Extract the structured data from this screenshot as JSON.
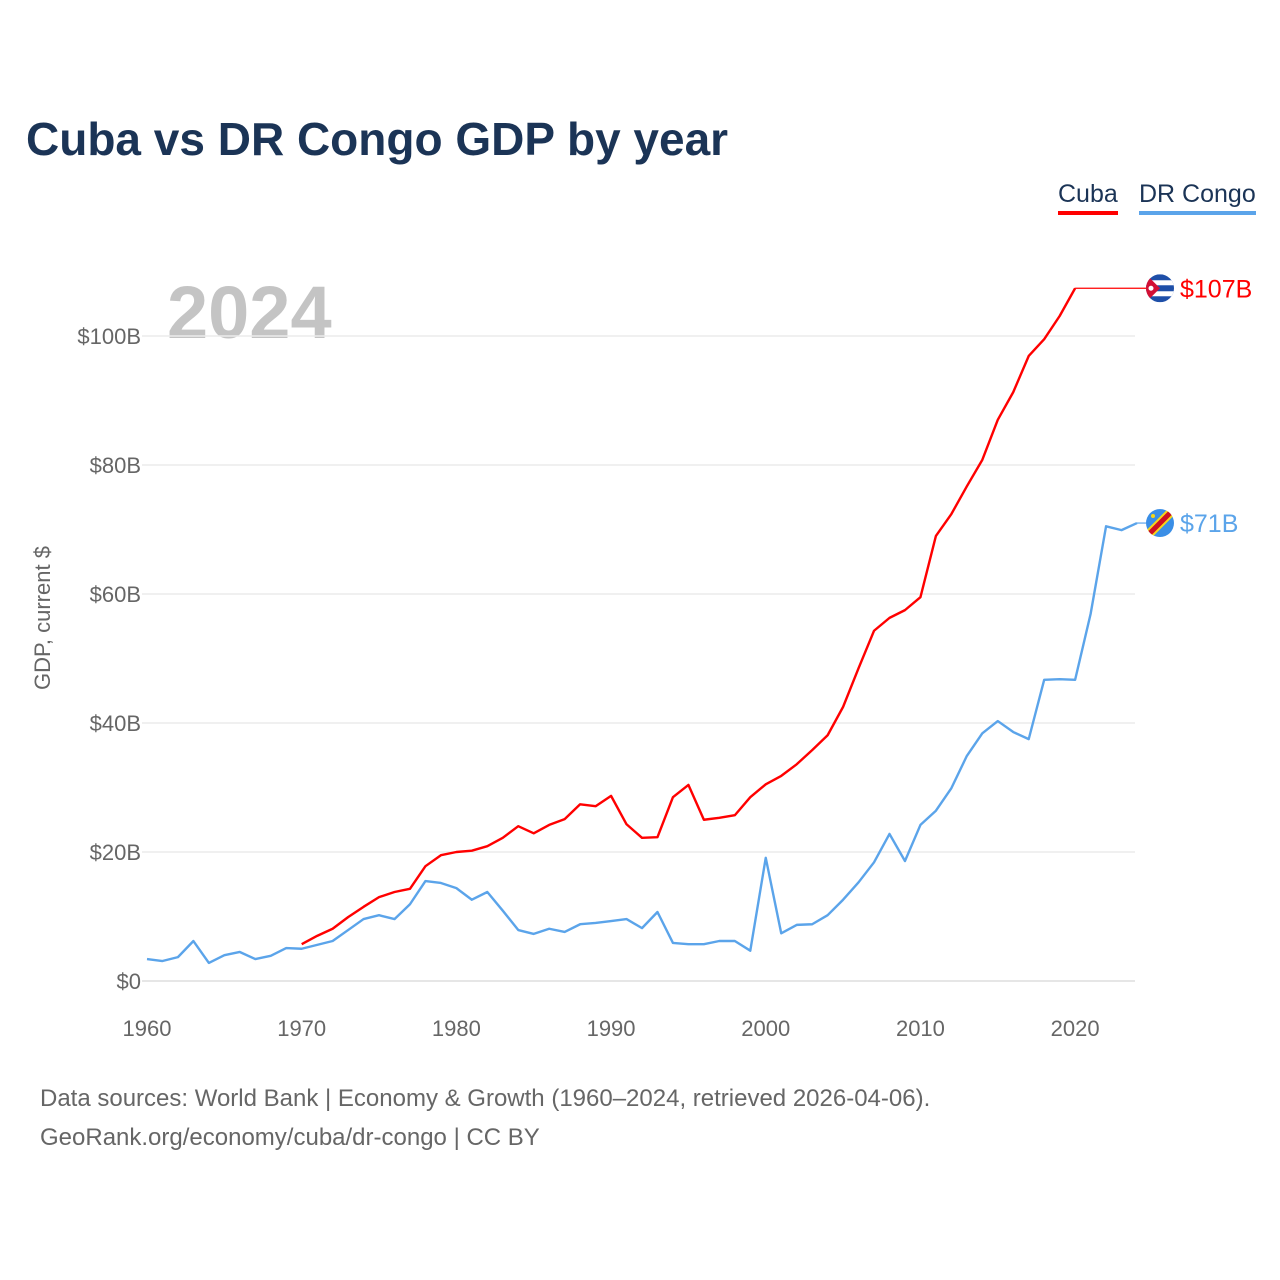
{
  "title": "Cuba vs DR Congo GDP by year",
  "legend": [
    {
      "label": "Cuba",
      "color": "#ff0000"
    },
    {
      "label": "DR Congo",
      "color": "#5ba4ea"
    }
  ],
  "footer": {
    "line1": "Data sources: World Bank | Economy & Growth (1960–2024, retrieved 2026-04-06).",
    "line2": "GeoRank.org/economy/cuba/dr-congo | CC BY"
  },
  "chart_data": {
    "type": "line",
    "title": "Cuba vs DR Congo GDP by year",
    "year_watermark": "2024",
    "ylabel": "GDP, current $",
    "xlabel": "",
    "xlim": [
      1960,
      2024
    ],
    "ylim": [
      0,
      110
    ],
    "x_ticks": [
      1960,
      1970,
      1980,
      1990,
      2000,
      2010,
      2020
    ],
    "x_tick_labels": [
      "1960",
      "1970",
      "1980",
      "1990",
      "2000",
      "2010",
      "2020"
    ],
    "y_ticks": [
      0,
      20,
      40,
      60,
      80,
      100
    ],
    "y_tick_labels": [
      "$0",
      "$20B",
      "$40B",
      "$60B",
      "$80B",
      "$100B"
    ],
    "grid": true,
    "legend_position": "top-right",
    "series": [
      {
        "name": "Cuba",
        "color": "#ff0000",
        "end_label": "$107B",
        "flag": "cuba-flag",
        "start_year": 1970,
        "values": [
          5.7,
          7.0,
          8.1,
          9.9,
          11.5,
          13.0,
          13.8,
          14.3,
          17.8,
          19.5,
          20.0,
          20.2,
          20.9,
          22.2,
          24.0,
          22.9,
          24.2,
          25.1,
          27.4,
          27.1,
          28.7,
          24.3,
          22.2,
          22.3,
          28.5,
          30.4,
          25.0,
          25.3,
          25.7,
          28.5,
          30.5,
          31.8,
          33.6,
          35.8,
          38.1,
          42.5,
          48.5,
          54.3,
          56.3,
          57.5,
          59.5,
          69.0,
          72.4,
          76.7,
          80.8,
          87.0,
          91.3,
          96.9,
          99.5,
          103.1,
          107.4
        ]
      },
      {
        "name": "DR Congo",
        "color": "#5ba4ea",
        "end_label": "$71B",
        "flag": "dr-congo-flag",
        "start_year": 1960,
        "values": [
          3.4,
          3.1,
          3.7,
          6.2,
          2.8,
          4.0,
          4.5,
          3.4,
          3.9,
          5.1,
          5.0,
          5.6,
          6.2,
          7.9,
          9.6,
          10.2,
          9.6,
          11.9,
          15.5,
          15.2,
          14.4,
          12.6,
          13.8,
          10.9,
          7.9,
          7.3,
          8.1,
          7.6,
          8.8,
          9.0,
          9.3,
          9.6,
          8.2,
          10.7,
          5.9,
          5.7,
          5.7,
          6.2,
          6.2,
          4.7,
          19.1,
          7.4,
          8.7,
          8.8,
          10.2,
          12.6,
          15.3,
          18.4,
          22.8,
          18.6,
          24.2,
          26.4,
          29.9,
          34.9,
          38.4,
          40.3,
          38.6,
          37.5,
          46.7,
          46.8,
          46.7,
          56.9,
          70.5,
          69.9,
          71.0
        ]
      }
    ]
  }
}
